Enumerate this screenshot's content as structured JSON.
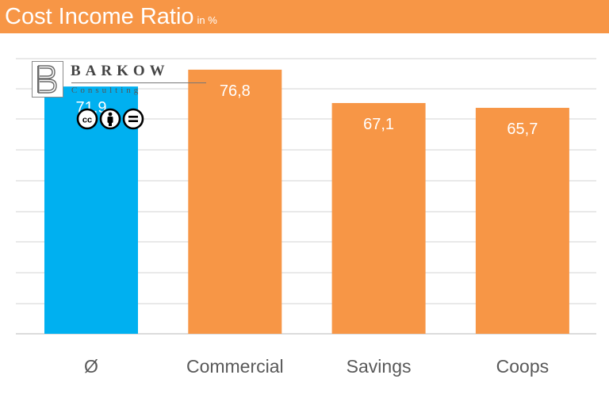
{
  "header": {
    "title": "Cost Income Ratio",
    "unit": "in %",
    "background": "#f79646"
  },
  "logo": {
    "brand": "BARKOW",
    "subtitle": "Consulting",
    "license_icons": [
      "cc-icon",
      "by-icon",
      "nd-icon"
    ]
  },
  "chart_data": {
    "type": "bar",
    "title": "Cost Income Ratio",
    "unit": "in %",
    "categories": [
      "Ø",
      "Commercial",
      "Savings",
      "Coops"
    ],
    "values": [
      71.9,
      76.8,
      67.1,
      65.7
    ],
    "value_labels": [
      "71,9",
      "76,8",
      "67,1",
      "65,7"
    ],
    "bar_colors": [
      "#00b0f0",
      "#f79646",
      "#f79646",
      "#f79646"
    ],
    "label_color": "#ffffff",
    "tick_color": "#595959",
    "grid": true,
    "legend": "none"
  }
}
